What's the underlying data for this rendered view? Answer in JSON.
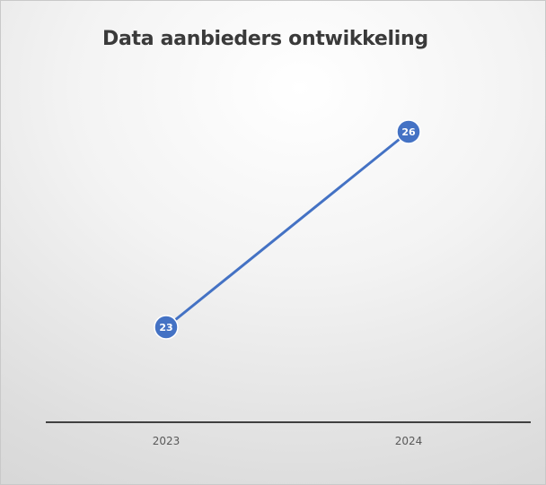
{
  "chart_data": {
    "type": "line",
    "title": "Data aanbieders ontwikkeling",
    "categories": [
      "2023",
      "2024"
    ],
    "series": [
      {
        "values": [
          23,
          26
        ]
      }
    ],
    "data_labels": [
      "23",
      "26"
    ],
    "ylim": [
      22,
      27
    ],
    "grid": false,
    "legend": "none",
    "colors": {
      "line": "#4472c4",
      "marker_edge": "#ffffff",
      "axis": "#404040",
      "label_text": "#ffffff"
    }
  }
}
